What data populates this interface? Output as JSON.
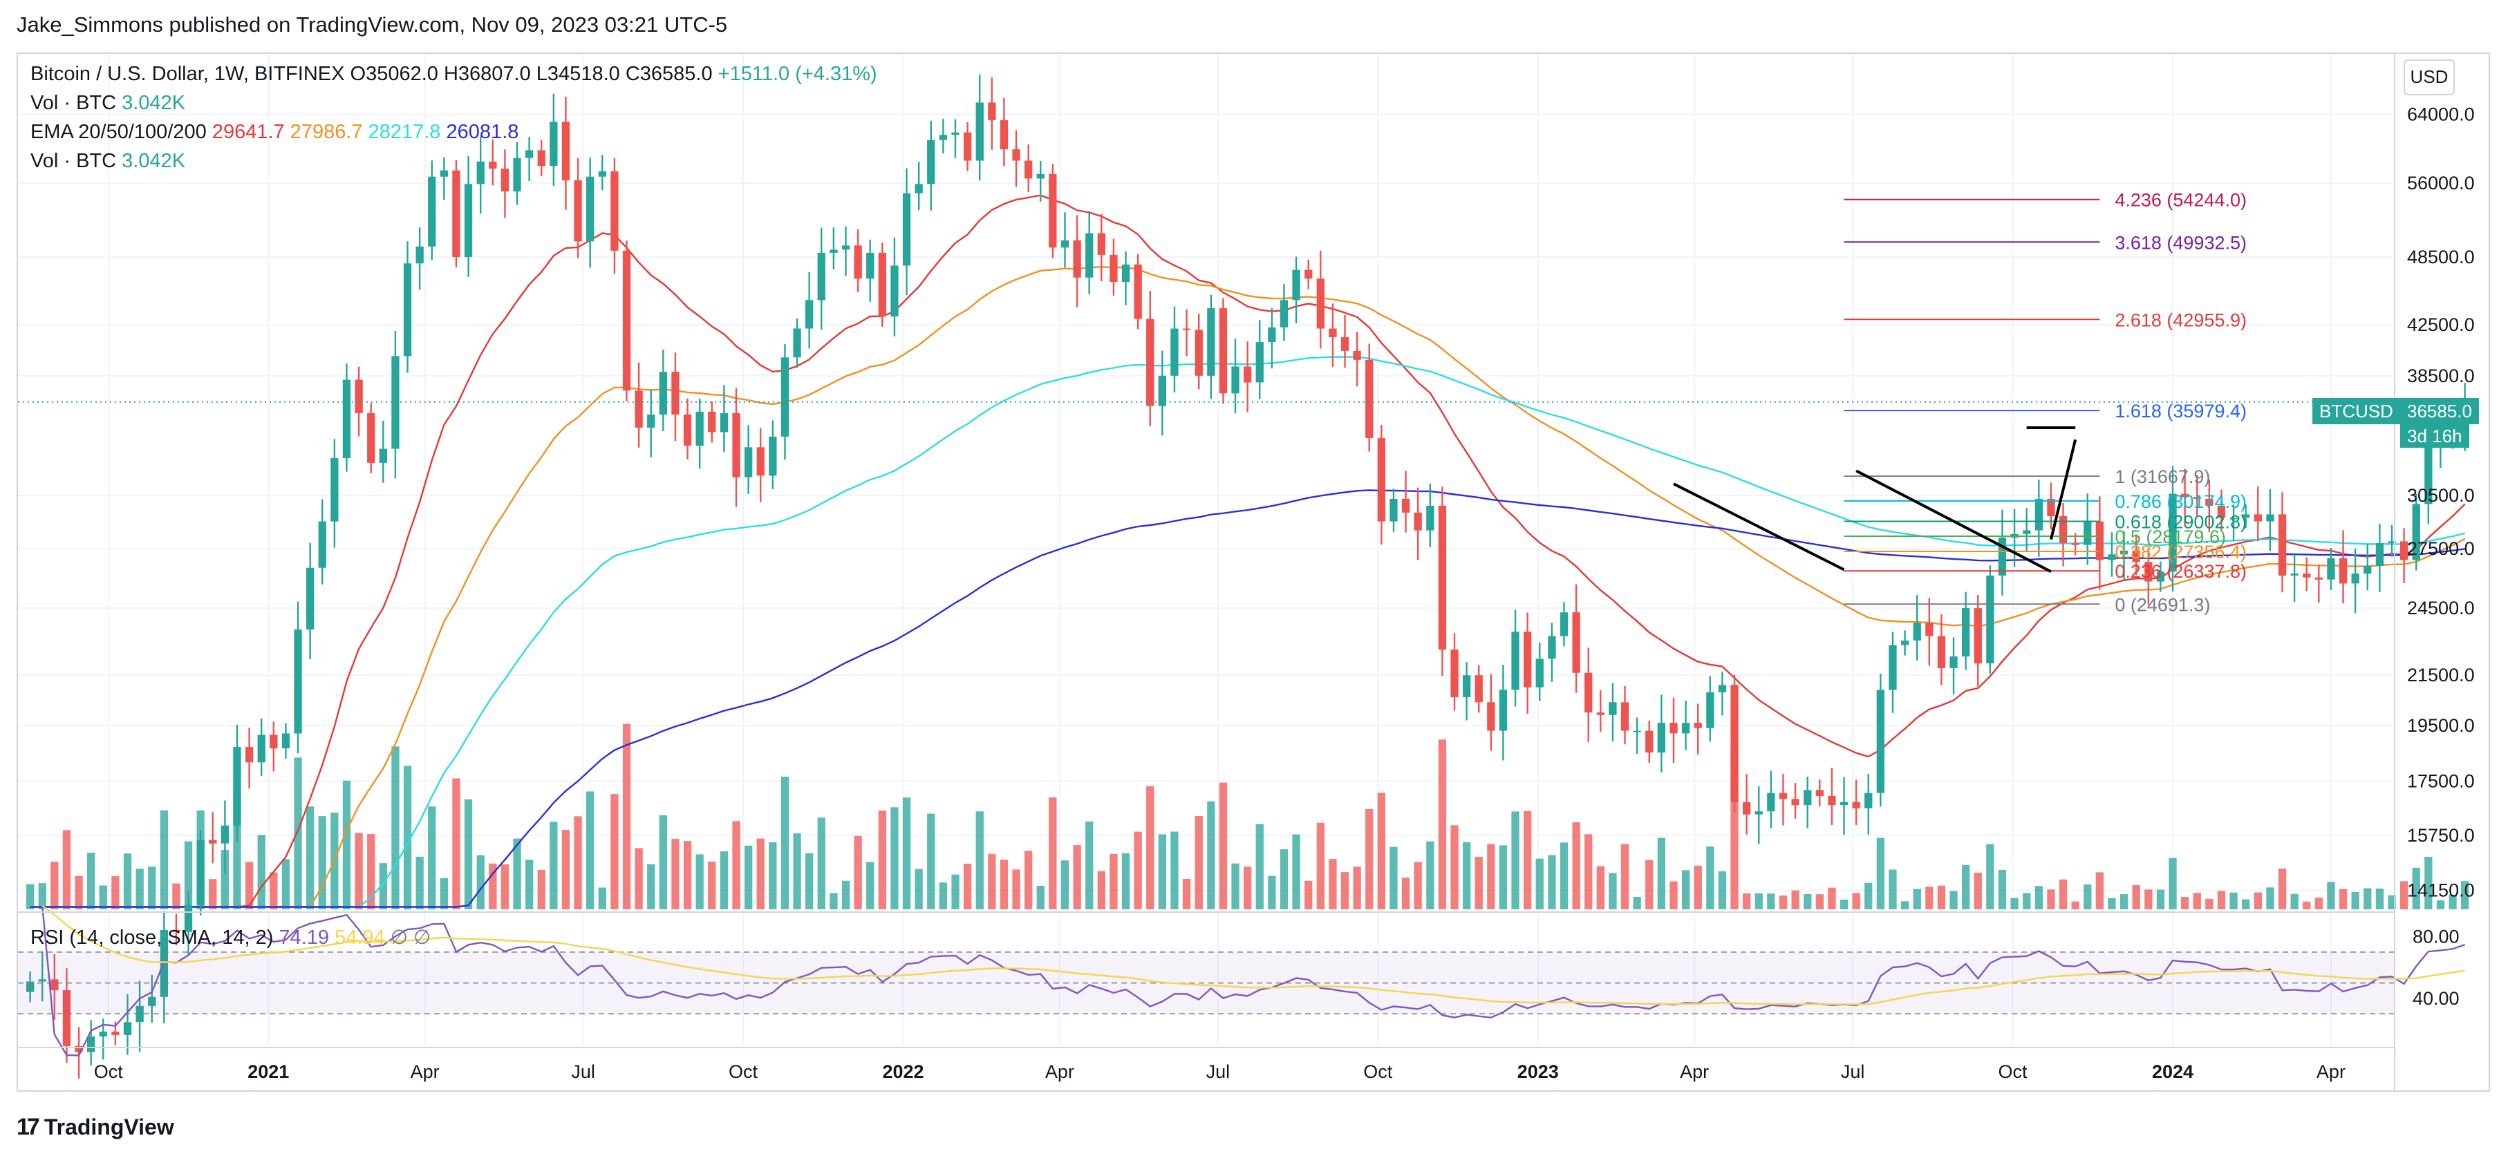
{
  "header": {
    "published": "Jake_Simmons published on TradingView.com, Nov 09, 2023 03:21 UTC-5"
  },
  "legend": {
    "symbol": "Bitcoin / U.S. Dollar, 1W, BITFINEX",
    "ohlc": "O35062.0  H36807.0  L34518.0  C36585.0",
    "change": "+1511.0 (+4.31%)",
    "vol_label": "Vol · BTC",
    "vol_value": "3.042K",
    "ema_label": "EMA 20/50/100/200",
    "ema20": "29641.7",
    "ema50": "27986.7",
    "ema100": "28217.8",
    "ema200": "26081.8",
    "vol2_label": "Vol · BTC",
    "vol2_value": "3.042K"
  },
  "rsi_legend": {
    "label": "RSI (14, close, SMA, 14, 2)",
    "value": "74.19",
    "sma": "54.94",
    "ext": "∅  ∅"
  },
  "currency": "USD",
  "price_tag": {
    "symbol": "BTCUSD",
    "price": "36585.0",
    "countdown": "3d 16h"
  },
  "colors": {
    "up": "#26a69a",
    "down": "#ef5350",
    "ema20": "#e53935",
    "ema50": "#f29120",
    "ema100": "#2bdde6",
    "ema200": "#2830d6",
    "rsi": "#7e57c2",
    "rsi_sma": "#f7d44c"
  },
  "brand": {
    "name": "TradingView",
    "logo": "17"
  },
  "chart_data": {
    "type": "candlestick",
    "title": "Bitcoin / U.S. Dollar, 1W, BITFINEX",
    "scale": "logarithmic",
    "y_ticks": [
      "64000.0",
      "56000.0",
      "48500.0",
      "42500.0",
      "38500.0",
      "30500.0",
      "27500.0",
      "24500.0",
      "21500.0",
      "19500.0",
      "17500.0",
      "15750.0",
      "14150.0"
    ],
    "y_tick_values": [
      64000,
      56000,
      48500,
      42500,
      38500,
      30500,
      27500,
      24500,
      21500,
      19500,
      17500,
      15750,
      14150
    ],
    "x_ticks": [
      {
        "label": "Oct",
        "date": "2020-10-01",
        "bold": false
      },
      {
        "label": "2021",
        "date": "2021-01-01",
        "bold": true
      },
      {
        "label": "Apr",
        "date": "2021-04-01",
        "bold": false
      },
      {
        "label": "Jul",
        "date": "2021-07-01",
        "bold": false
      },
      {
        "label": "Oct",
        "date": "2021-10-01",
        "bold": false
      },
      {
        "label": "2022",
        "date": "2022-01-01",
        "bold": true
      },
      {
        "label": "Apr",
        "date": "2022-04-01",
        "bold": false
      },
      {
        "label": "Jul",
        "date": "2022-07-01",
        "bold": false
      },
      {
        "label": "Oct",
        "date": "2022-10-01",
        "bold": false
      },
      {
        "label": "2023",
        "date": "2023-01-01",
        "bold": true
      },
      {
        "label": "Apr",
        "date": "2023-04-01",
        "bold": false
      },
      {
        "label": "Jul",
        "date": "2023-07-01",
        "bold": false
      },
      {
        "label": "Oct",
        "date": "2023-10-01",
        "bold": false
      },
      {
        "label": "2024",
        "date": "2024-01-01",
        "bold": true
      },
      {
        "label": "Apr",
        "date": "2024-04-01",
        "bold": false
      }
    ],
    "x_start": "2020-08-10",
    "x_end": "2024-05-06",
    "close_series_start": "2020-08-17",
    "weekly_close": [
      11850,
      11900,
      11650,
      10450,
      10330,
      10650,
      10750,
      10680,
      10950,
      11300,
      11500,
      13100,
      13050,
      13750,
      15600,
      15500,
      16050,
      18700,
      18150,
      19150,
      18650,
      19200,
      23500,
      26500,
      29000,
      32800,
      38200,
      35800,
      32500,
      33400,
      40000,
      47900,
      49500,
      56700,
      57400,
      48500,
      55900,
      58400,
      57600,
      55100,
      58800,
      59700,
      57900,
      63100,
      56300,
      50000,
      56700,
      57300,
      49100,
      37400,
      34800,
      35700,
      38800,
      35700,
      33600,
      35900,
      34500,
      35800,
      31600,
      33500,
      31700,
      34200,
      39900,
      42200,
      44600,
      48900,
      49200,
      49600,
      46500,
      48900,
      43200,
      47700,
      54900,
      55900,
      60900,
      61500,
      61800,
      58500,
      65500,
      63300,
      59800,
      58500,
      56500,
      57000,
      49400,
      50100,
      46600,
      50800,
      48700,
      46200,
      47800,
      43000,
      36300,
      38500,
      42200,
      42100,
      38500,
      43900,
      37200,
      39200,
      38000,
      41100,
      42300,
      44600,
      47300,
      46500,
      42200,
      41500,
      40400,
      39700,
      34100,
      29000,
      30300,
      29500,
      28500,
      29900,
      22600,
      20600,
      21500,
      20400,
      19300,
      20900,
      23400,
      21000,
      22200,
      23200,
      24300,
      21600,
      20000,
      19900,
      20400,
      19300,
      19300,
      18500,
      19600,
      19200,
      19600,
      19400,
      20800,
      21100,
      16800,
      16400,
      16500,
      17100,
      16900,
      16700,
      17200,
      17000,
      16700,
      16800,
      16600,
      17100,
      20900,
      22800,
      23000,
      23800,
      23200,
      21800,
      22300,
      24500,
      22000,
      26100,
      28100,
      28300,
      28500,
      30300,
      29300,
      27800,
      27700,
      29000,
      26900,
      27200,
      27400,
      26800,
      25800,
      26300,
      30600,
      30400,
      30300,
      29900,
      29200,
      29200,
      29400,
      29000,
      29400,
      26100,
      26200,
      26000,
      25900,
      27000,
      25700,
      26200,
      26600,
      27800,
      27900,
      26900,
      30000,
      34100,
      34500,
      35000,
      36585
    ],
    "ema": {
      "ema20_ending": 29641.7,
      "ema50_ending": 27986.7,
      "ema100_ending": 28217.8,
      "ema200_ending": 26081.8
    },
    "fibonacci": [
      {
        "level": "4.236",
        "price": "54244.0",
        "color": "#c2185b"
      },
      {
        "level": "3.618",
        "price": "49932.5",
        "color": "#7b1fa2"
      },
      {
        "level": "2.618",
        "price": "42955.9",
        "color": "#e53935"
      },
      {
        "level": "1.618",
        "price": "35979.4",
        "color": "#2962ff"
      },
      {
        "level": "1",
        "price": "31667.9",
        "color": "#787b86"
      },
      {
        "level": "0.786",
        "price": "30174.9",
        "color": "#00bcd4"
      },
      {
        "level": "0.618",
        "price": "29002.8",
        "color": "#089981"
      },
      {
        "level": "0.5",
        "price": "28179.6",
        "color": "#4caf50"
      },
      {
        "level": "0.382",
        "price": "27356.4",
        "color": "#f29120"
      },
      {
        "level": "0.236",
        "price": "26337.8",
        "color": "#e53935"
      },
      {
        "level": "0",
        "price": "24691.3",
        "color": "#787b86"
      }
    ],
    "rsi": {
      "upper": 70,
      "lower": 30,
      "ticks": [
        "80.00",
        "40.00"
      ],
      "tick_values": [
        80,
        40
      ],
      "last": 74.19,
      "sma_last": 54.94
    }
  }
}
